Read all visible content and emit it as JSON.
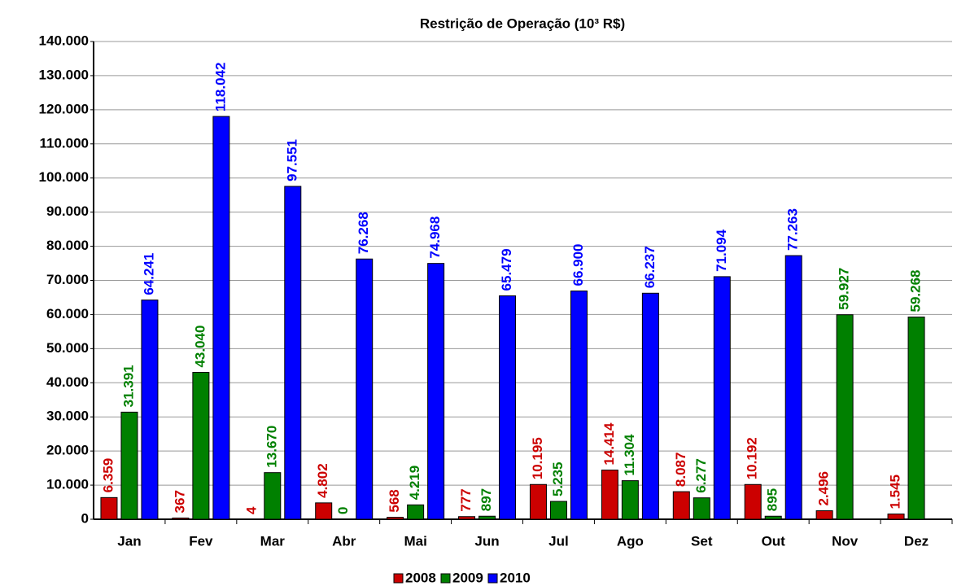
{
  "chart_data": {
    "type": "bar",
    "title": "Restrição de Operação (10³ R$)",
    "categories": [
      "Jan",
      "Fev",
      "Mar",
      "Abr",
      "Mai",
      "Jun",
      "Jul",
      "Ago",
      "Set",
      "Out",
      "Nov",
      "Dez"
    ],
    "series": [
      {
        "name": "2008",
        "color": "#cc0000",
        "values": [
          6359,
          367,
          4,
          4802,
          568,
          777,
          10195,
          14414,
          8087,
          10192,
          2496,
          1545
        ],
        "value_labels": [
          "6.359",
          "367",
          "4",
          "4.802",
          "568",
          "777",
          "10.195",
          "14.414",
          "8.087",
          "10.192",
          "2.496",
          "1.545"
        ]
      },
      {
        "name": "2009",
        "color": "#008000",
        "values": [
          31391,
          43040,
          13670,
          0,
          4219,
          897,
          5235,
          11304,
          6277,
          895,
          59927,
          59268
        ],
        "value_labels": [
          "31.391",
          "43.040",
          "13.670",
          "0",
          "4.219",
          "897",
          "5.235",
          "11.304",
          "6.277",
          "895",
          "59.927",
          "59.268"
        ]
      },
      {
        "name": "2010",
        "color": "#0000ff",
        "values": [
          64241,
          118042,
          97551,
          76268,
          74968,
          65479,
          66900,
          66237,
          71094,
          77263,
          null,
          null
        ],
        "value_labels": [
          "64.241",
          "118.042",
          "97.551",
          "76.268",
          "74.968",
          "65.479",
          "66.900",
          "66.237",
          "71.094",
          "77.263",
          null,
          null
        ]
      }
    ],
    "ylim": [
      0,
      140000
    ],
    "yticks": [
      0,
      {
        "value": 10000,
        "label": "10.000"
      },
      {
        "value": 20000,
        "label": "20.000"
      },
      {
        "value": 30000,
        "label": "30.000"
      },
      {
        "value": 40000,
        "label": "40.000"
      },
      {
        "value": 50000,
        "label": "50.000"
      },
      {
        "value": 60000,
        "label": "60.000"
      },
      {
        "value": 70000,
        "label": "70.000"
      },
      {
        "value": 80000,
        "label": "80.000"
      },
      {
        "value": 90000,
        "label": "90.000"
      },
      {
        "value": 100000,
        "label": "100.000"
      },
      {
        "value": 110000,
        "label": "110.000"
      },
      {
        "value": 120000,
        "label": "120.000"
      },
      {
        "value": 130000,
        "label": "130.000"
      },
      {
        "value": 140000,
        "label": "140.000"
      }
    ],
    "grid": true,
    "legend": "bottom"
  }
}
